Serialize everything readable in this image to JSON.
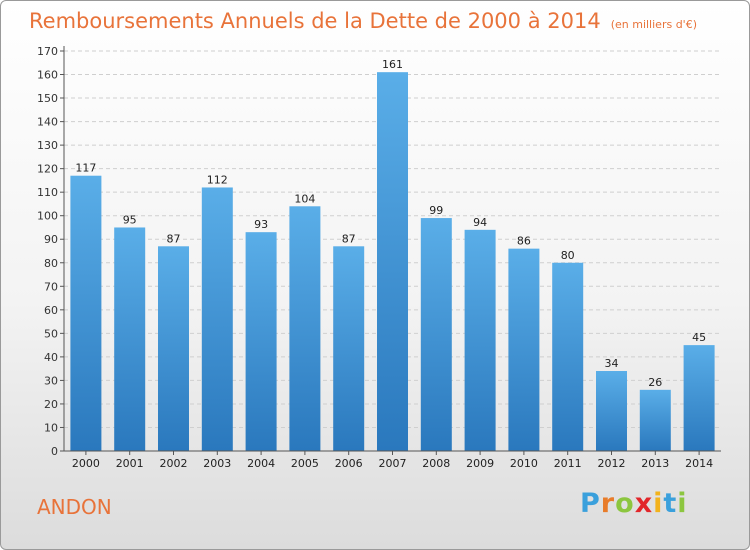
{
  "title": "Remboursements Annuels de la Dette de 2000 à 2014",
  "unit": "(en milliers d'€)",
  "commune": "ANDON",
  "logo": {
    "letters": [
      "P",
      "r",
      "o",
      "x",
      "i",
      "t",
      "i"
    ],
    "colors": [
      "#3aa0dc",
      "#e87c2a",
      "#8cc63f",
      "#e2262a",
      "#f2b21c",
      "#3aa0dc",
      "#8cc63f"
    ]
  },
  "colors": {
    "bar_top": "#5aaee8",
    "bar_bottom": "#2a78bd",
    "title": "#e8733a"
  },
  "chart_data": {
    "type": "bar",
    "title": "Remboursements Annuels de la Dette de 2000 à 2014",
    "categories": [
      "2000",
      "2001",
      "2002",
      "2003",
      "2004",
      "2005",
      "2006",
      "2007",
      "2008",
      "2009",
      "2010",
      "2011",
      "2012",
      "2013",
      "2014"
    ],
    "values": [
      117,
      95,
      87,
      112,
      93,
      104,
      87,
      161,
      99,
      94,
      86,
      80,
      34,
      26,
      45
    ],
    "ylim": [
      0,
      170
    ],
    "yticks": [
      0,
      10,
      20,
      30,
      40,
      50,
      60,
      70,
      80,
      90,
      100,
      110,
      120,
      130,
      140,
      150,
      160,
      170
    ],
    "grid": true,
    "legend": "none"
  }
}
